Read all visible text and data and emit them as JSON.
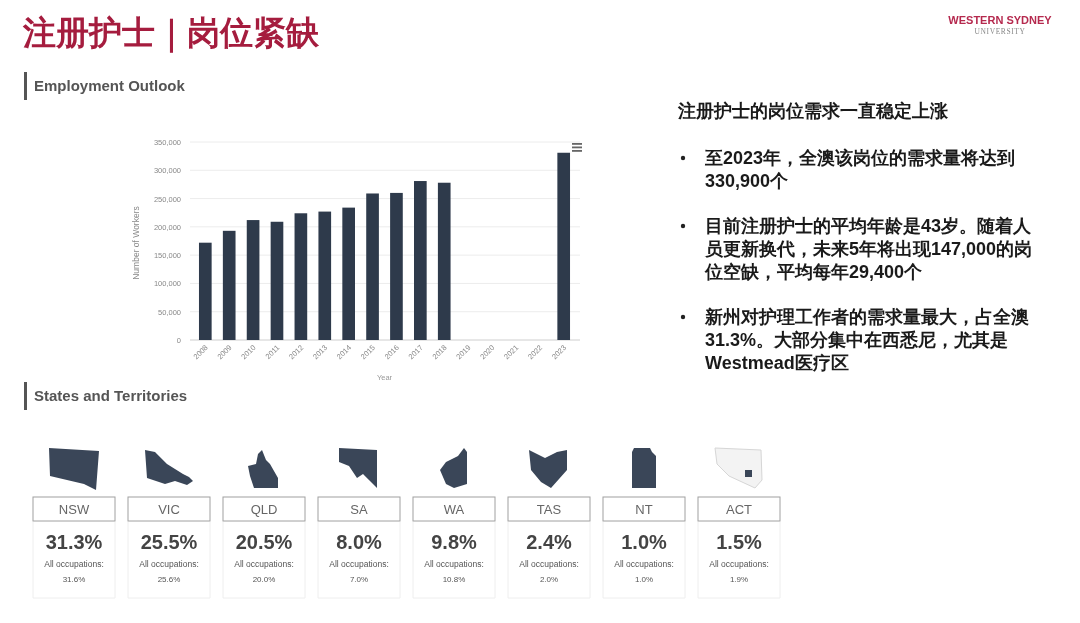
{
  "chart_data": [
    {
      "type": "other",
      "title": "注册护士｜岗位紧缺",
      "annotations": [
        "WESTERN SYDNEY",
        "UNIVERSITY"
      ]
    },
    {
      "type": "bar",
      "title": "Employment Outlook",
      "xlabel": "Year",
      "ylabel": "Number of Workers",
      "categories": [
        "2008",
        "2009",
        "2010",
        "2011",
        "2012",
        "2013",
        "2014",
        "2015",
        "2016",
        "2017",
        "2018",
        "2019",
        "2020",
        "2021",
        "2022",
        "2023"
      ],
      "values": [
        172000,
        193000,
        212000,
        209000,
        224000,
        227000,
        234000,
        259000,
        260000,
        281000,
        278000,
        null,
        null,
        null,
        null,
        331000
      ],
      "color": "#2e3a4b",
      "ylim": [
        0,
        350000
      ],
      "yticks": [
        0,
        {
          "value": 50000,
          "label": "50,000"
        },
        {
          "value": 100000,
          "label": "100,000"
        },
        {
          "value": 150000,
          "label": "150,000"
        },
        {
          "value": 200000,
          "label": "200,000"
        },
        {
          "value": 250000,
          "label": "250,000"
        },
        {
          "value": 300000,
          "label": "300,000"
        },
        {
          "value": 350000,
          "label": "350,000"
        }
      ],
      "grid": "y"
    },
    {
      "type": "other",
      "title": "注册护士的岗位需求一直稳定上涨",
      "annotations": [
        "至2023年，全澳该岗位的需求量将达到330,900个",
        "目前注册护士的平均年龄是43岁。随着人员更新换代，未来5年将出现147,000的岗位空缺，平均每年29,400个",
        "新州对护理工作者的需求量最大，占全澳31.3%。大部分集中在西悉尼，尤其是Westmead医疗区"
      ]
    },
    {
      "type": "other",
      "title": "States and Territories",
      "categories": [
        "NSW",
        "VIC",
        "QLD",
        "SA",
        "WA",
        "TAS",
        "NT",
        "ACT"
      ],
      "series": [
        {
          "color": "#444444",
          "values": [
            31.3,
            25.5,
            20.5,
            8.0,
            9.8,
            2.4,
            1.0,
            1.5
          ],
          "value_labels": [
            "31.3%",
            "25.5%",
            "20.5%",
            "8.0%",
            "9.8%",
            "2.4%",
            "1.0%",
            "1.5%"
          ]
        },
        {
          "name": "All occupations:",
          "color": "#555555",
          "values": [
            31.6,
            25.6,
            20.0,
            7.0,
            10.8,
            2.0,
            1.0,
            1.9
          ],
          "value_labels": [
            "31.6%",
            "25.6%",
            "20.0%",
            "7.0%",
            "10.8%",
            "2.0%",
            "1.0%",
            "1.9%"
          ]
        }
      ]
    }
  ]
}
